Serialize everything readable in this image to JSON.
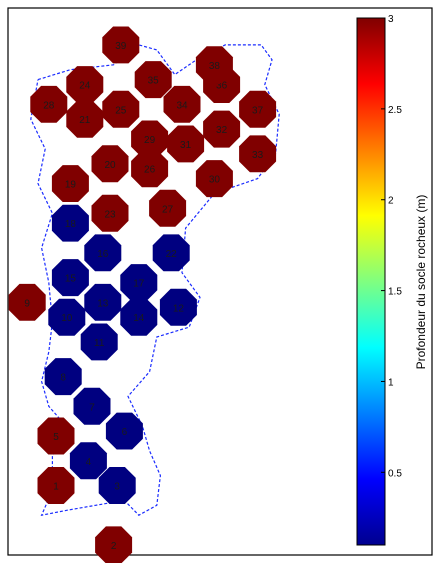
{
  "chart_data": {
    "type": "scatter",
    "description_free": true,
    "colorbar": {
      "label": "Profondeur du socle rocheux (m)",
      "min": 0.1,
      "max": 3,
      "ticks": [
        0.5,
        1,
        1.5,
        2,
        2.5,
        3
      ],
      "tick_labels": [
        "0.5",
        "1",
        "1.5",
        "2",
        "2.5",
        "3"
      ],
      "colormap": "jet"
    },
    "points": [
      {
        "id": "1",
        "x": 1.0,
        "y": 1.0,
        "value": 3
      },
      {
        "id": "2",
        "x": 2.6,
        "y": -0.2,
        "value": 3
      },
      {
        "id": "3",
        "x": 2.7,
        "y": 1.0,
        "value": 0.1
      },
      {
        "id": "4",
        "x": 1.9,
        "y": 1.5,
        "value": 0.1
      },
      {
        "id": "5",
        "x": 1.0,
        "y": 2.0,
        "value": 3
      },
      {
        "id": "6",
        "x": 2.9,
        "y": 2.1,
        "value": 0.1
      },
      {
        "id": "7",
        "x": 2.0,
        "y": 2.6,
        "value": 0.1
      },
      {
        "id": "8",
        "x": 1.2,
        "y": 3.2,
        "value": 0.1
      },
      {
        "id": "9",
        "x": 0.2,
        "y": 4.7,
        "value": 3
      },
      {
        "id": "10",
        "x": 1.3,
        "y": 4.4,
        "value": 0.1
      },
      {
        "id": "11",
        "x": 2.2,
        "y": 3.9,
        "value": 0.1
      },
      {
        "id": "12",
        "x": 4.4,
        "y": 4.6,
        "value": 0.1
      },
      {
        "id": "13",
        "x": 2.3,
        "y": 4.7,
        "value": 0.1
      },
      {
        "id": "14",
        "x": 3.3,
        "y": 4.4,
        "value": 0.1
      },
      {
        "id": "15",
        "x": 1.4,
        "y": 5.2,
        "value": 0.1
      },
      {
        "id": "16",
        "x": 2.3,
        "y": 5.7,
        "value": 0.1
      },
      {
        "id": "17",
        "x": 3.3,
        "y": 5.1,
        "value": 0.1
      },
      {
        "id": "18",
        "x": 1.4,
        "y": 6.3,
        "value": 0.1
      },
      {
        "id": "19",
        "x": 1.4,
        "y": 7.1,
        "value": 3
      },
      {
        "id": "20",
        "x": 2.5,
        "y": 7.5,
        "value": 3
      },
      {
        "id": "21",
        "x": 1.8,
        "y": 8.4,
        "value": 3
      },
      {
        "id": "22",
        "x": 4.2,
        "y": 5.7,
        "value": 0.1
      },
      {
        "id": "23",
        "x": 2.5,
        "y": 6.5,
        "value": 3
      },
      {
        "id": "24",
        "x": 1.8,
        "y": 9.1,
        "value": 3
      },
      {
        "id": "25",
        "x": 2.8,
        "y": 8.6,
        "value": 3
      },
      {
        "id": "26",
        "x": 3.6,
        "y": 7.4,
        "value": 3
      },
      {
        "id": "27",
        "x": 4.1,
        "y": 6.6,
        "value": 3
      },
      {
        "id": "28",
        "x": 0.8,
        "y": 8.7,
        "value": 3
      },
      {
        "id": "29",
        "x": 3.6,
        "y": 8.0,
        "value": 3
      },
      {
        "id": "30",
        "x": 5.4,
        "y": 7.2,
        "value": 3
      },
      {
        "id": "31",
        "x": 4.6,
        "y": 7.9,
        "value": 3
      },
      {
        "id": "32",
        "x": 5.6,
        "y": 8.2,
        "value": 3
      },
      {
        "id": "33",
        "x": 6.6,
        "y": 7.7,
        "value": 3
      },
      {
        "id": "34",
        "x": 4.5,
        "y": 8.7,
        "value": 3
      },
      {
        "id": "35",
        "x": 3.7,
        "y": 9.2,
        "value": 3
      },
      {
        "id": "36",
        "x": 5.6,
        "y": 9.1,
        "value": 3
      },
      {
        "id": "37",
        "x": 6.6,
        "y": 8.6,
        "value": 3
      },
      {
        "id": "38",
        "x": 5.4,
        "y": 9.5,
        "value": 3
      },
      {
        "id": "39",
        "x": 2.8,
        "y": 9.9,
        "value": 3
      }
    ],
    "boundary": [
      [
        0.5,
        9.2
      ],
      [
        1.4,
        9.4
      ],
      [
        2.6,
        9.5
      ],
      [
        3.3,
        9.9
      ],
      [
        3.8,
        9.8
      ],
      [
        4.3,
        9.3
      ],
      [
        4.9,
        9.6
      ],
      [
        5.7,
        9.9
      ],
      [
        6.7,
        9.9
      ],
      [
        7.0,
        9.6
      ],
      [
        6.8,
        9.1
      ],
      [
        7.2,
        8.5
      ],
      [
        7.1,
        7.7
      ],
      [
        6.6,
        7.2
      ],
      [
        5.4,
        6.9
      ],
      [
        4.6,
        6.2
      ],
      [
        4.5,
        5.3
      ],
      [
        5.0,
        4.8
      ],
      [
        4.7,
        4.2
      ],
      [
        3.8,
        4.0
      ],
      [
        3.6,
        3.3
      ],
      [
        3.0,
        2.8
      ],
      [
        3.4,
        2.2
      ],
      [
        3.6,
        1.7
      ],
      [
        3.9,
        1.2
      ],
      [
        3.8,
        0.6
      ],
      [
        3.3,
        0.4
      ],
      [
        2.9,
        0.7
      ],
      [
        2.1,
        0.6
      ],
      [
        1.3,
        0.5
      ],
      [
        0.6,
        0.4
      ],
      [
        0.9,
        0.9
      ],
      [
        0.9,
        1.6
      ],
      [
        1.4,
        2.1
      ],
      [
        0.8,
        2.6
      ],
      [
        0.6,
        3.1
      ],
      [
        0.8,
        3.7
      ],
      [
        0.9,
        4.3
      ],
      [
        0.8,
        5.1
      ],
      [
        0.6,
        5.8
      ],
      [
        0.9,
        6.5
      ],
      [
        0.5,
        7.1
      ],
      [
        0.7,
        7.8
      ],
      [
        0.3,
        8.4
      ],
      [
        0.5,
        9.2
      ]
    ]
  }
}
